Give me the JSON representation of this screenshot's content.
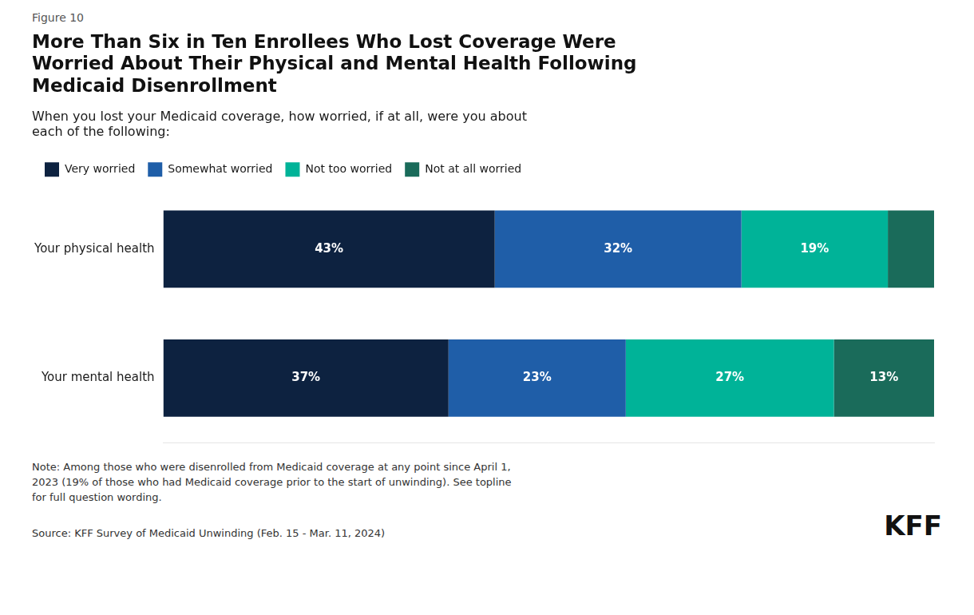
{
  "chart_data": {
    "type": "bar",
    "orientation": "horizontal",
    "stacked": true,
    "title": "More Than Six in Ten Enrollees Who Lost Coverage Were\nWorried About Their Physical and Mental Health Following\nMedicaid Disenrollment",
    "subtitle": "When you lost your Medicaid coverage, how worried, if at all, were you about\neach of the following:",
    "annotations": [
      "Figure 10",
      "Note: Among those who were disenrolled from Medicaid coverage at any point since April 1,\n2023 (19% of those who had Medicaid coverage prior to the start of unwinding). See topline\nfor full question wording.",
      "Source: KFF Survey of Medicaid Unwinding (Feb. 15 - Mar. 11, 2024)",
      "KFF"
    ],
    "categories": [
      "Your physical health",
      "Your mental health"
    ],
    "series": [
      {
        "name": "Very worried",
        "color": "#0d2240",
        "values": [
          43,
          37
        ],
        "value_labels": [
          "43%",
          "37%"
        ]
      },
      {
        "name": "Somewhat worried",
        "color": "#1f5ea8",
        "values": [
          32,
          23
        ],
        "value_labels": [
          "32%",
          "23%"
        ]
      },
      {
        "name": "Not too worried",
        "color": "#00b398",
        "values": [
          19,
          27
        ],
        "value_labels": [
          "19%",
          "27%"
        ]
      },
      {
        "name": "Not at all worried",
        "color": "#1a6b5a",
        "values": [
          6,
          13
        ],
        "value_labels": [
          null,
          "13%"
        ]
      }
    ],
    "xlim": [
      0,
      100
    ],
    "data_labels": true,
    "tick_labels": "y",
    "grid": false,
    "legend": "upper left"
  }
}
